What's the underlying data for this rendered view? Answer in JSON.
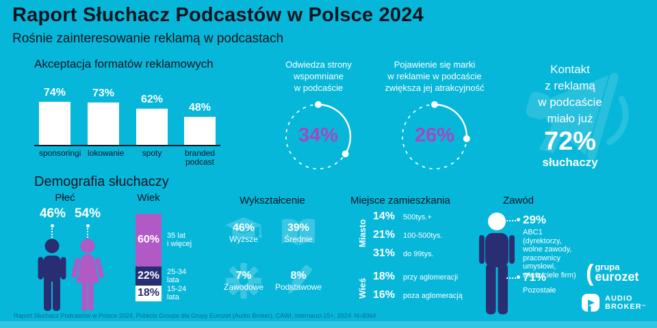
{
  "header": {
    "title": "Raport Słuchacz Podcastów w Polsce 2024",
    "subtitle": "Rośnie zainteresowanie reklamą w podcastach"
  },
  "demographics_title": "Demografia słuchaczy",
  "colors": {
    "background": "#06b7da",
    "navy": "#292d72",
    "purple": "#b159c4",
    "magenta": "#a846c0",
    "icon_cyan": "#3cc6e2",
    "megaphone_cyan": "#2cc1de",
    "text_dark": "#0d1420",
    "white": "#ffffff",
    "footer_text": "#0d6b90"
  },
  "chart_data": [
    {
      "id": "ad_format_acceptance",
      "type": "bar",
      "title": "Akceptacja formatów reklamowych",
      "categories": [
        "sponsoringi",
        "lokowanie",
        "spoty",
        "branded\npodcast"
      ],
      "values": [
        74,
        73,
        62,
        48
      ],
      "value_labels": [
        "74%",
        "73%",
        "62%",
        "48%"
      ],
      "unit": "%",
      "ylim": [
        0,
        100
      ],
      "grid": false,
      "bar_color": "#ffffff"
    },
    {
      "id": "visits_mentioned_sites",
      "type": "gauge",
      "title": "Odwiedza strony\nwspomniane\nw podcaście",
      "value": 34,
      "value_label": "34%",
      "unit": "%"
    },
    {
      "id": "brand_attractiveness",
      "type": "gauge",
      "title": "Pojawienie się marki\nw reklamie w podcaście\nzwiększa jej atrakcyjność",
      "value": 26,
      "value_label": "26%",
      "unit": "%"
    },
    {
      "id": "ad_contact",
      "type": "stat",
      "title": "Kontakt\nz reklamą\nw podcaście\nmiało już",
      "value": 72,
      "value_label": "72%",
      "suffix": "słuchaczy"
    },
    {
      "id": "gender",
      "type": "pictogram",
      "title": "Płeć",
      "categories": [
        "male",
        "female"
      ],
      "values": [
        46,
        54
      ],
      "value_labels": [
        "46%",
        "54%"
      ],
      "colors": [
        "#292d72",
        "#b159c4"
      ]
    },
    {
      "id": "age",
      "type": "stacked-bar",
      "title": "Wiek",
      "categories": [
        "35 lat\ni więcej",
        "25-34\nlata",
        "15-24\nlata"
      ],
      "values": [
        60,
        22,
        18
      ],
      "value_labels": [
        "60%",
        "22%",
        "18%"
      ],
      "colors": [
        "#b159c4",
        "#292d72",
        "#ffffff"
      ]
    },
    {
      "id": "education",
      "type": "pictogram",
      "title": "Wykształcenie",
      "categories": [
        "Wyższe",
        "Średnie",
        "Zawodowe",
        "Podstawowe"
      ],
      "values": [
        46,
        39,
        7,
        8
      ],
      "value_labels": [
        "46%",
        "39%",
        "7%",
        "8%"
      ],
      "icons": [
        "graduation-cap",
        "open-book",
        "gear",
        "pencil"
      ]
    },
    {
      "id": "residence",
      "type": "grouped-list",
      "title": "Miejsce zamieszkania",
      "groups": [
        {
          "label": "Miasto",
          "items": [
            {
              "value": 14,
              "value_label": "14%",
              "label": "500tys.+"
            },
            {
              "value": 21,
              "value_label": "21%",
              "label": "100-500tys."
            },
            {
              "value": 31,
              "value_label": "31%",
              "label": "do 99tys."
            }
          ]
        },
        {
          "label": "Wieś",
          "items": [
            {
              "value": 18,
              "value_label": "18%",
              "label": "przy aglomeracji"
            },
            {
              "value": 16,
              "value_label": "16%",
              "label": "poza aglomeracją"
            }
          ]
        }
      ]
    },
    {
      "id": "occupation",
      "type": "pictogram",
      "title": "Zawód",
      "items": [
        {
          "value": 29,
          "value_label": "29%",
          "label": "ABC1\n(dyrektorzy,\nwolne zawody,\npracownicy\numysłowi,\nwłaściciele firm)"
        },
        {
          "value": 71,
          "value_label": "71%",
          "label": "Pozostałe"
        }
      ]
    }
  ],
  "logos": {
    "eurozet_paren": "(",
    "eurozet_line1": "grupa",
    "eurozet_line2": "eurozet",
    "audio_line1": "AUDIO",
    "audio_line2": "BROKER",
    "audio_tm": "™"
  },
  "footer": {
    "text": "Raport Słuchacz Podcastów w Polsce 2024, Publicis Groupe dla Grupy Eurozet (Audio Broker), CAWI, internauci 15+, 2024: N=8364"
  }
}
